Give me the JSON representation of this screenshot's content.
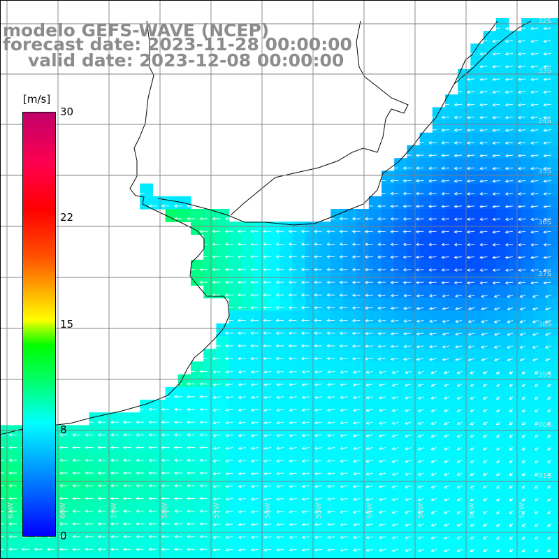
{
  "titles": {
    "line1": "modelo GEFS-WAVE (NCEP)",
    "line2": "forecast date: 2023-11-28 00:00:00",
    "line3": "valid date: 2023-12-08 00:00:00"
  },
  "colorbar": {
    "units": "[m/s]",
    "ticks": [
      "30",
      "22",
      "15",
      "8",
      "0"
    ],
    "tick_values": [
      30,
      22,
      15,
      8,
      0
    ],
    "range": [
      0,
      30
    ],
    "colors": [
      "#0000ff",
      "#00c0ff",
      "#00ffff",
      "#00ff00",
      "#ffff00",
      "#ff5000",
      "#ff0000",
      "#c0006a"
    ]
  },
  "map": {
    "variable": "wind speed",
    "arrow_color": "#ffffff",
    "land_color": "#ffffff",
    "grid_color": "#808080",
    "lat_labels": [
      "32S",
      "33S",
      "34S",
      "35S",
      "36S",
      "37S",
      "38S",
      "39S",
      "40S",
      "41S"
    ],
    "lon_labels": [
      "61W",
      "60W",
      "59W",
      "58W",
      "57W",
      "56W",
      "55W",
      "54W",
      "53W",
      "52W",
      "51W"
    ]
  }
}
